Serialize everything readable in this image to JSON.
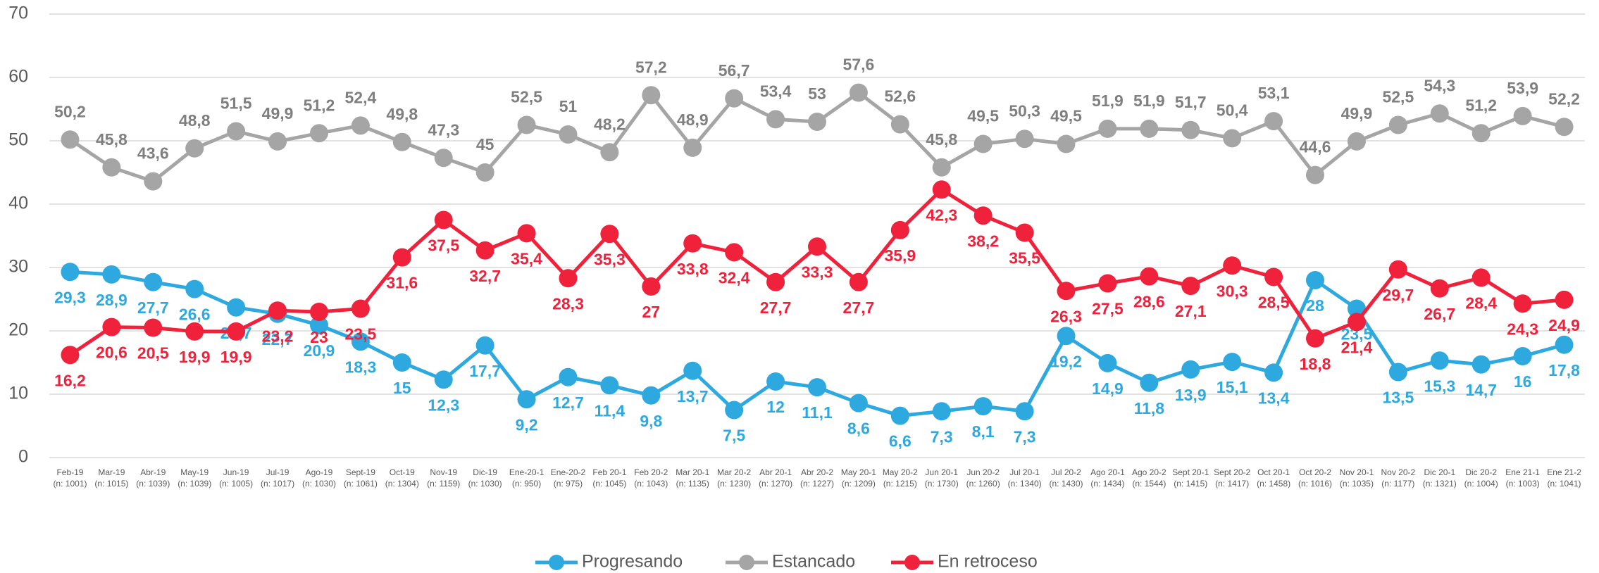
{
  "chart_data": {
    "type": "line",
    "categories": [
      "Feb-19",
      "Mar-19",
      "Abr-19",
      "May-19",
      "Jun-19",
      "Jul-19",
      "Ago-19",
      "Sept-19",
      "Oct-19",
      "Nov-19",
      "Dic-19",
      "Ene-20-1",
      "Ene-20-2",
      "Feb 20-1",
      "Feb 20-2",
      "Mar 20-1",
      "Mar 20-2",
      "Abr 20-1",
      "Abr 20-2",
      "May 20-1",
      "May 20-2",
      "Jun 20-1",
      "Jun 20-2",
      "Jul 20-1",
      "Jul 20-2",
      "Ago 20-1",
      "Ago 20-2",
      "Sept 20-1",
      "Sept 20-2",
      "Oct 20-1",
      "Oct 20-2",
      "Nov 20-1",
      "Nov 20-2",
      "Dic 20-1",
      "Dic 20-2",
      "Ene 21-1",
      "Ene 21-2"
    ],
    "category_notes": [
      "(n: 1001)",
      "(n: 1015)",
      "(n: 1039)",
      "(n: 1039)",
      "(n: 1005)",
      "(n: 1017)",
      "(n: 1030)",
      "(n: 1061)",
      "(n: 1304)",
      "(n: 1159)",
      "(n: 1030)",
      "(n: 950)",
      "(n: 975)",
      "(n: 1045)",
      "(n: 1043)",
      "(n: 1135)",
      "(n: 1230)",
      "(n: 1270)",
      "(n: 1227)",
      "(n: 1209)",
      "(n: 1215)",
      "(n: 1730)",
      "(n: 1260)",
      "(n: 1340)",
      "(n: 1430)",
      "(n: 1434)",
      "(n: 1544)",
      "(n: 1415)",
      "(n: 1417)",
      "(n: 1458)",
      "(n: 1016)",
      "(n: 1035)",
      "(n: 1177)",
      "(n: 1321)",
      "(n: 1004)",
      "(n: 1003)",
      "(n: 1041)"
    ],
    "series": [
      {
        "name": "Progresando",
        "color": "#2ea9df",
        "label_side": "below",
        "values": [
          29.3,
          28.9,
          27.7,
          26.6,
          23.7,
          22.7,
          20.9,
          18.3,
          15,
          12.3,
          17.7,
          9.2,
          12.7,
          11.4,
          9.8,
          13.7,
          7.5,
          12,
          11.1,
          8.6,
          6.6,
          7.3,
          8.1,
          7.3,
          19.2,
          14.9,
          11.8,
          13.9,
          15.1,
          13.4,
          28,
          23.5,
          13.5,
          15.3,
          14.7,
          16,
          17.8
        ],
        "value_labels": [
          "29,3",
          "28,9",
          "27,7",
          "26,6",
          "23,7",
          "22,7",
          "20,9",
          "18,3",
          "15",
          "12,3",
          "17,7",
          "9,2",
          "12,7",
          "11,4",
          "9,8",
          "13,7",
          "7,5",
          "12",
          "11,1",
          "8,6",
          "6,6",
          "7,3",
          "8,1",
          "7,3",
          "19,2",
          "14,9",
          "11,8",
          "13,9",
          "15,1",
          "13,4",
          "28",
          "23,5",
          "13,5",
          "15,3",
          "14,7",
          "16",
          "17,8"
        ]
      },
      {
        "name": "Estancado",
        "color": "#a5a5a5",
        "label_side": "above",
        "values": [
          50.2,
          45.8,
          43.6,
          48.8,
          51.5,
          49.9,
          51.2,
          52.4,
          49.8,
          47.3,
          45,
          52.5,
          51,
          48.2,
          57.2,
          48.9,
          56.7,
          53.4,
          53,
          57.6,
          52.6,
          45.8,
          49.5,
          50.3,
          49.5,
          51.9,
          51.9,
          51.7,
          50.4,
          53.1,
          44.6,
          49.9,
          52.5,
          54.3,
          51.2,
          53.9,
          52.2
        ],
        "value_labels": [
          "50,2",
          "45,8",
          "43,6",
          "48,8",
          "51,5",
          "49,9",
          "51,2",
          "52,4",
          "49,8",
          "47,3",
          "45",
          "52,5",
          "51",
          "48,2",
          "57,2",
          "48,9",
          "56,7",
          "53,4",
          "53",
          "57,6",
          "52,6",
          "45,8",
          "49,5",
          "50,3",
          "49,5",
          "51,9",
          "51,9",
          "51,7",
          "50,4",
          "53,1",
          "44,6",
          "49,9",
          "52,5",
          "54,3",
          "51,2",
          "53,9",
          "52,2"
        ]
      },
      {
        "name": "En retroceso",
        "color": "#f0213a",
        "label_side": "below",
        "values": [
          16.2,
          20.6,
          20.5,
          19.9,
          19.9,
          23.2,
          23,
          23.5,
          31.6,
          37.5,
          32.7,
          35.4,
          28.3,
          35.3,
          27,
          33.8,
          32.4,
          27.7,
          33.3,
          27.7,
          35.9,
          42.3,
          38.2,
          35.5,
          26.3,
          27.5,
          28.6,
          27.1,
          30.3,
          28.5,
          18.8,
          21.4,
          29.7,
          26.7,
          28.4,
          24.3,
          24.9
        ],
        "value_labels": [
          "16,2",
          "20,6",
          "20,5",
          "19,9",
          "19,9",
          "23,2",
          "23",
          "23,5",
          "31,6",
          "37,5",
          "32,7",
          "35,4",
          "28,3",
          "35,3",
          "27",
          "33,8",
          "32,4",
          "27,7",
          "33,3",
          "27,7",
          "35,9",
          "42,3",
          "38,2",
          "35,5",
          "26,3",
          "27,5",
          "28,6",
          "27,1",
          "30,3",
          "28,5",
          "18,8",
          "21,4",
          "29,7",
          "26,7",
          "28,4",
          "24,3",
          "24,9"
        ]
      }
    ],
    "ylim": [
      0,
      70
    ],
    "yticks": [
      0,
      10,
      20,
      30,
      40,
      50,
      60,
      70
    ],
    "grid": true,
    "legend": "bottom"
  }
}
